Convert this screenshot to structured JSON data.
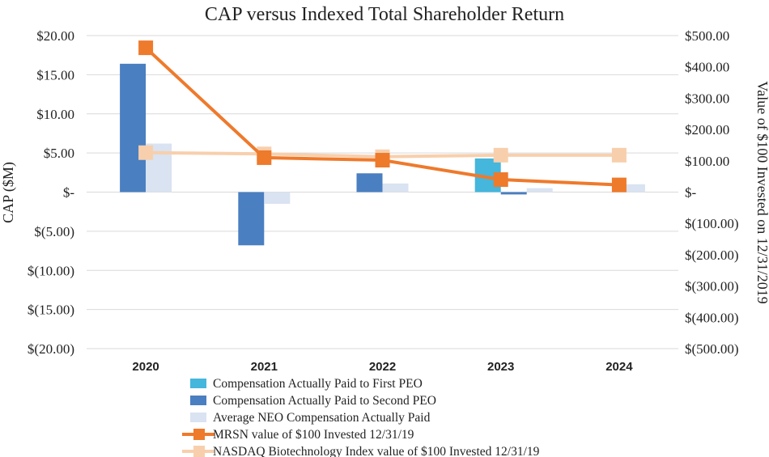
{
  "chart_data": {
    "type": "bar",
    "title": "CAP versus Indexed Total Shareholder Return",
    "ylabel": "CAP ($M)",
    "y2label": "Value of $100 Invested on 12/31/2019",
    "categories": [
      "2020",
      "2021",
      "2022",
      "2023",
      "2024"
    ],
    "ylim": [
      -20,
      20
    ],
    "y2lim": [
      -500,
      500
    ],
    "y_ticks": [
      20,
      15,
      10,
      5,
      0,
      -5,
      -10,
      -15,
      -20
    ],
    "y_tick_labels": [
      "$20.00",
      "$15.00",
      "$10.00",
      "$5.00",
      "$-",
      "$(5.00)",
      "$(10.00)",
      "$(15.00)",
      "$(20.00)"
    ],
    "y2_ticks": [
      500,
      400,
      300,
      200,
      100,
      0,
      -100,
      -200,
      -300,
      -400,
      -500
    ],
    "y2_tick_labels": [
      "$500.00",
      "$400.00",
      "$300.00",
      "$200.00",
      "$100.00",
      "$-",
      "$(100.00)",
      "$(200.00)",
      "$(300.00)",
      "$(400.00)",
      "$(500.00)"
    ],
    "grid": true,
    "legend_position": "bottom",
    "bar_series": [
      {
        "name": "Compensation Actually Paid to First PEO",
        "color": "#45b6dc",
        "values": [
          0,
          0,
          0,
          4.3,
          0
        ]
      },
      {
        "name": "Compensation Actually Paid to Second PEO",
        "color": "#4a7fc1",
        "values": [
          16.4,
          -6.8,
          2.4,
          -0.3,
          0
        ]
      },
      {
        "name": "Average NEO Compensation Actually Paid",
        "color": "#d9e3f1",
        "values": [
          6.2,
          -1.5,
          1.1,
          0.5,
          1.0
        ]
      }
    ],
    "line_series": [
      {
        "name": "MRSN value of $100 Invested 12/31/19",
        "color": "#ee7a2c",
        "axis": "right",
        "values": [
          461,
          110,
          102,
          40,
          23
        ]
      },
      {
        "name": "NASDAQ Biotechnology Index value of $100 Invested 12/31/19",
        "color": "#f8cfac",
        "axis": "right",
        "values": [
          126,
          122,
          113,
          118,
          118
        ]
      }
    ]
  }
}
